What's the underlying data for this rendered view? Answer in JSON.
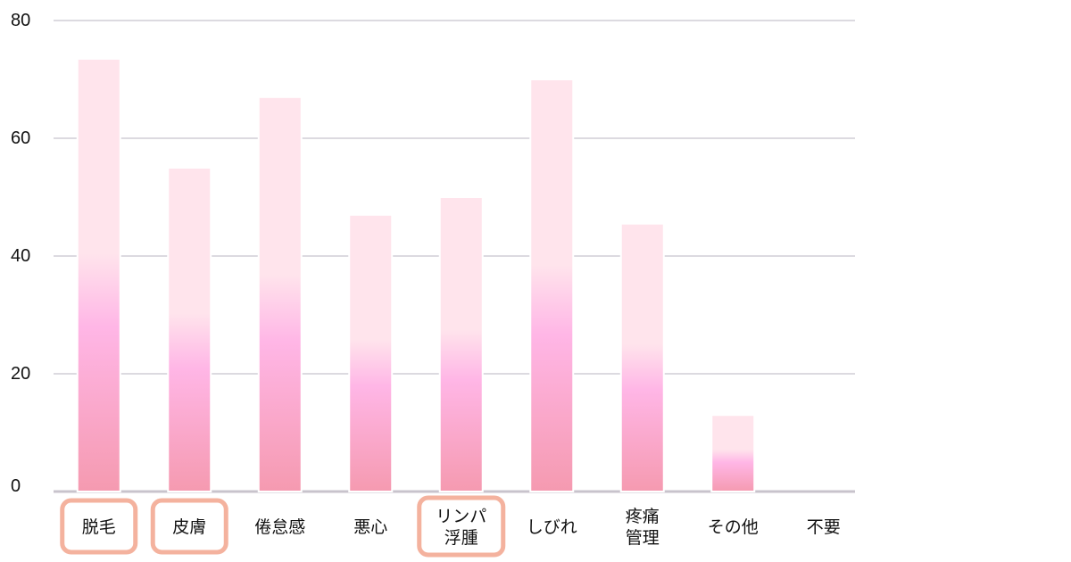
{
  "chart_data": {
    "type": "bar",
    "title": "",
    "xlabel": "",
    "ylabel": "",
    "ylim": [
      0,
      80
    ],
    "yticks": [
      0,
      20,
      40,
      60,
      80
    ],
    "grid": true,
    "legend": "none",
    "categories": [
      [
        "脱毛"
      ],
      [
        "皮膚"
      ],
      [
        "倦怠感"
      ],
      [
        "悪心"
      ],
      [
        "リンパ",
        "浮腫"
      ],
      [
        "しびれ"
      ],
      [
        "疼痛",
        "管理"
      ],
      [
        "その他"
      ],
      [
        "不要"
      ]
    ],
    "values": [
      73.5,
      55,
      67,
      47,
      50,
      70,
      45.5,
      13,
      0
    ],
    "highlighted": [
      true,
      true,
      false,
      false,
      true,
      false,
      false,
      false,
      false
    ],
    "colors": {
      "bar_top": "#ffe4ec",
      "bar_mid": "#ffb6e6",
      "bar_bottom": "#f59ab0",
      "bar_edge": "#ffffff",
      "grid": "#d0cdd6",
      "baseline": "#c8c3cc",
      "highlight_box": "#f4b29e"
    }
  }
}
